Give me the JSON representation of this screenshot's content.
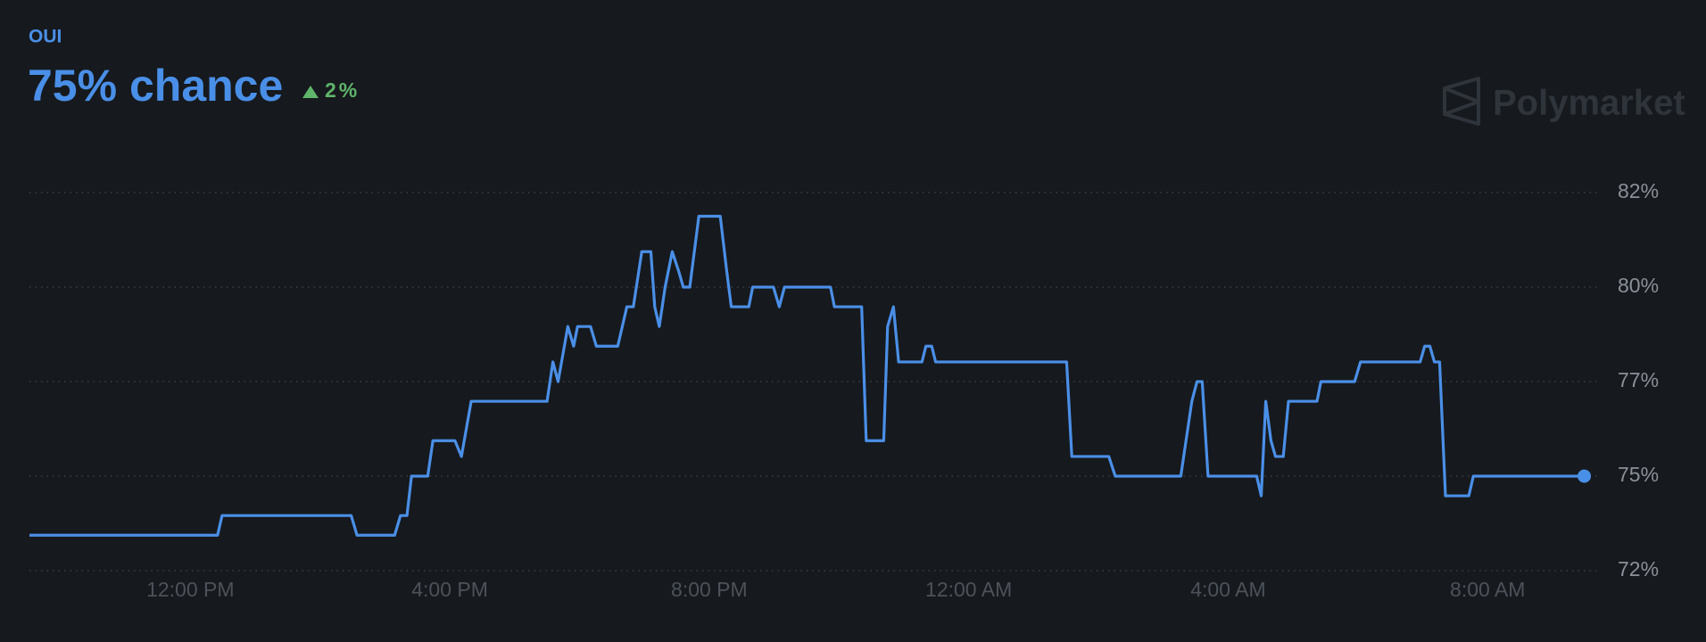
{
  "chart_data": {
    "type": "line",
    "title": "OUI",
    "subtitle": "75% chance",
    "change": "2%",
    "watermark": "Polymarket",
    "color": "#4a8fe7",
    "change_color": "#5fb56a",
    "grid": true,
    "x": [
      -2.48,
      0.42,
      0.49,
      2.48,
      2.57,
      3.15,
      3.24,
      3.34,
      3.41,
      3.66,
      3.74,
      4.08,
      4.18,
      4.33,
      5.5,
      5.59,
      5.67,
      5.82,
      5.91,
      5.97,
      6.17,
      6.26,
      6.59,
      6.73,
      6.83,
      6.96,
      7.1,
      7.16,
      7.23,
      7.32,
      7.43,
      7.53,
      7.6,
      7.7,
      7.84,
      8.17,
      8.27,
      8.34,
      8.61,
      8.67,
      8.99,
      9.08,
      9.16,
      9.87,
      9.93,
      10.35,
      10.42,
      10.69,
      10.75,
      10.84,
      10.92,
      11.28,
      11.34,
      11.43,
      11.49,
      13.51,
      13.59,
      14.16,
      14.26,
      15.27,
      15.44,
      15.52,
      15.6,
      15.69,
      16.44,
      16.51,
      16.58,
      16.66,
      16.73,
      16.85,
      16.93,
      17.37,
      17.43,
      17.95,
      18.04,
      18.96,
      19.03,
      19.11,
      19.18,
      19.26,
      19.35,
      19.71,
      19.78,
      21.49
    ],
    "values": [
      73.3,
      73.3,
      73.8,
      73.8,
      73.3,
      73.3,
      73.8,
      73.8,
      74.8,
      74.8,
      75.7,
      75.7,
      75.3,
      76.7,
      76.7,
      77.7,
      77.2,
      78.6,
      78.1,
      78.6,
      78.6,
      78.1,
      78.1,
      79.1,
      79.1,
      80.5,
      80.5,
      79.1,
      78.6,
      79.6,
      80.5,
      80.0,
      79.6,
      79.6,
      81.4,
      81.4,
      80.0,
      79.1,
      79.1,
      79.6,
      79.6,
      79.1,
      79.6,
      79.6,
      79.1,
      79.1,
      75.7,
      75.7,
      78.6,
      79.1,
      77.7,
      77.7,
      78.1,
      78.1,
      77.7,
      77.7,
      75.3,
      75.3,
      74.8,
      74.8,
      76.7,
      77.2,
      77.2,
      74.8,
      74.8,
      74.3,
      76.7,
      75.7,
      75.3,
      75.3,
      76.7,
      76.7,
      77.2,
      77.2,
      77.7,
      77.7,
      78.1,
      78.1,
      77.7,
      77.7,
      74.3,
      74.3,
      74.8,
      74.8
    ],
    "xlim": [
      -2.48,
      21.73
    ],
    "xticks": [
      {
        "value": 0,
        "label": "12:00 PM"
      },
      {
        "value": 4,
        "label": "4:00 PM"
      },
      {
        "value": 8,
        "label": "8:00 PM"
      },
      {
        "value": 12,
        "label": "12:00 AM"
      },
      {
        "value": 16,
        "label": "4:00 AM"
      },
      {
        "value": 20,
        "label": "8:00 AM"
      }
    ],
    "ylim": [
      72.4,
      82.0
    ],
    "yticks": [
      {
        "value": 72.4,
        "label": "72%"
      },
      {
        "value": 74.8,
        "label": "75%"
      },
      {
        "value": 77.2,
        "label": "77%"
      },
      {
        "value": 79.6,
        "label": "80%"
      },
      {
        "value": 82.0,
        "label": "82%"
      }
    ]
  }
}
